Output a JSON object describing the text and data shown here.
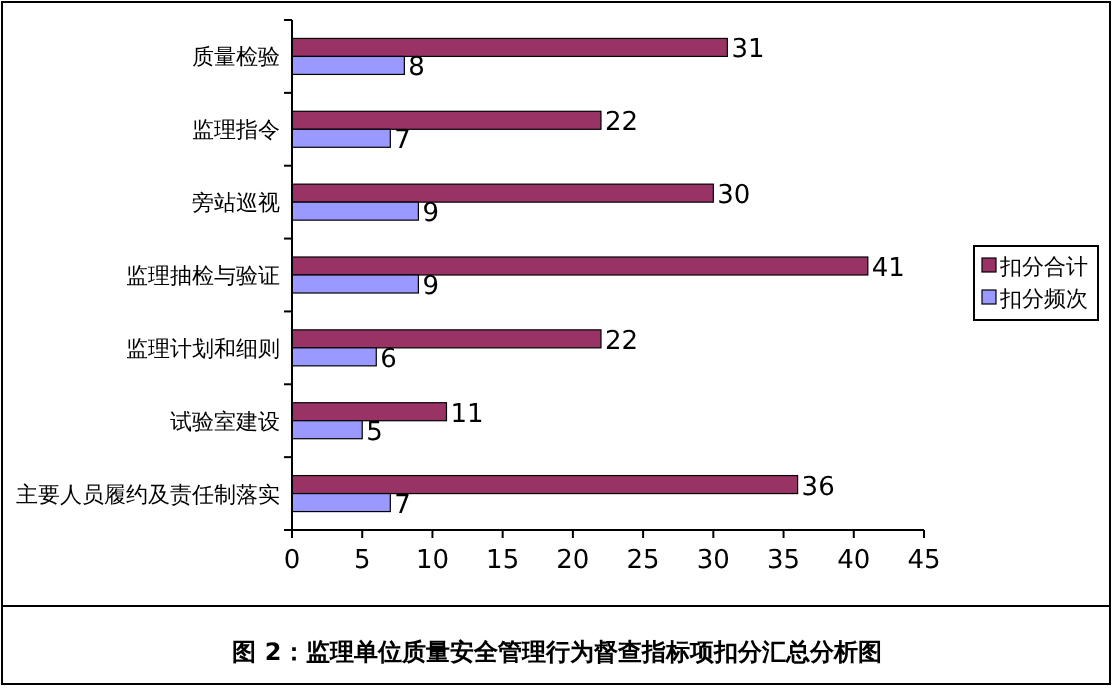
{
  "chart_data": {
    "type": "bar",
    "orientation": "horizontal",
    "title": "图 2：监理单位质量安全管理行为督查指标项扣分汇总分析图",
    "categories": [
      "质量检验",
      "监理指令",
      "旁站巡视",
      "监理抽检与验证",
      "监理计划和细则",
      "试验室建设",
      "主要人员履约及责任制落实"
    ],
    "series": [
      {
        "name": "扣分合计",
        "color": "#993366",
        "values": [
          31,
          22,
          30,
          41,
          22,
          11,
          36
        ]
      },
      {
        "name": "扣分频次",
        "color": "#9999ff",
        "values": [
          8,
          7,
          9,
          9,
          6,
          5,
          7
        ]
      }
    ],
    "xlim": [
      0,
      45
    ],
    "xticks": [
      0,
      5,
      10,
      15,
      20,
      25,
      30,
      35,
      40,
      45
    ],
    "data_labels": true,
    "grid": false,
    "legend": "right"
  }
}
